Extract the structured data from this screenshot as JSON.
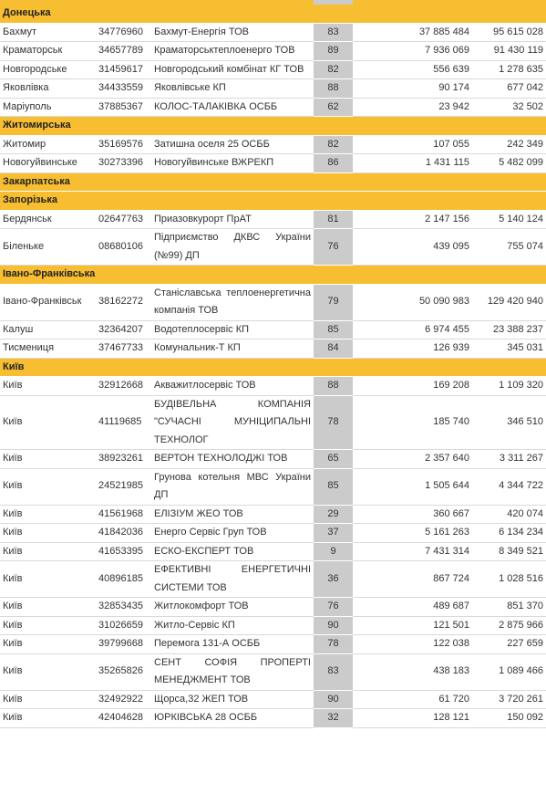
{
  "table": {
    "sections": [
      {
        "region": "Донецька",
        "rows": [
          {
            "city": "Бахмут",
            "code": "34776960",
            "name": "Бахмут-Енергія ТОВ",
            "score": "83",
            "v1": "37 885 484",
            "v2": "95 615 028"
          },
          {
            "city": "Краматорськ",
            "code": "34657789",
            "name": "Краматорськтеплоенерго ТОВ",
            "score": "89",
            "v1": "7 936 069",
            "v2": "91 430 119"
          },
          {
            "city": "Новгородське",
            "code": "31459617",
            "name": "Новгородський комбінат КГ ТОВ",
            "score": "82",
            "v1": "556 639",
            "v2": "1 278 635"
          },
          {
            "city": "Яковлівка",
            "code": "34433559",
            "name": "Яковлівське КП",
            "score": "88",
            "v1": "90 174",
            "v2": "677 042"
          },
          {
            "city": "Маріуполь",
            "code": "37885367",
            "name": "КОЛОС-ТАЛАКІВКА ОСББ",
            "score": "62",
            "v1": "23 942",
            "v2": "32 502"
          }
        ]
      },
      {
        "region": "Житомирська",
        "rows": [
          {
            "city": "Житомир",
            "code": "35169576",
            "name": "Затишна оселя 25 ОСББ",
            "score": "82",
            "v1": "107 055",
            "v2": "242 349"
          },
          {
            "city": "Новогуйвинське",
            "code": "30273396",
            "name": "Новогуйвинське ВЖРЕКП",
            "score": "86",
            "v1": "1 431 115",
            "v2": "5 482 099"
          }
        ]
      },
      {
        "region": "Закарпатська",
        "rows": []
      },
      {
        "region": "Запорізька",
        "rows": [
          {
            "city": "Бердянськ",
            "code": "02647763",
            "name": "Приазовкурорт ПрАТ",
            "score": "81",
            "v1": "2 147 156",
            "v2": "5 140 124"
          },
          {
            "city": "Біленьке",
            "code": "08680106",
            "name": "Підприємство ДКВС України (№99) ДП",
            "score": "76",
            "v1": "439 095",
            "v2": "755 074"
          }
        ]
      },
      {
        "region": "Івано-Франківська",
        "rows": [
          {
            "city": "Івано-Франківськ",
            "code": "38162272",
            "name": "Станіславська теплоенергетична компанія ТОВ",
            "score": "79",
            "v1": "50 090 983",
            "v2": "129 420 940"
          },
          {
            "city": "Калуш",
            "code": "32364207",
            "name": "Водотеплосервіс КП",
            "score": "85",
            "v1": "6 974 455",
            "v2": "23 388 237"
          },
          {
            "city": "Тисмениця",
            "code": "37467733",
            "name": "Комунальник-Т КП",
            "score": "84",
            "v1": "126 939",
            "v2": "345 031"
          }
        ]
      },
      {
        "region": "Київ",
        "rows": [
          {
            "city": "Київ",
            "code": "32912668",
            "name": "Акважитлосервіс ТОВ",
            "score": "88",
            "v1": "169 208",
            "v2": "1 109 320"
          },
          {
            "city": "Київ",
            "code": "41119685",
            "name": "БУДІВЕЛЬНА КОМПАНІЯ \"СУЧАСНІ МУНІЦИПАЛЬНІ ТЕХНОЛОГ",
            "score": "78",
            "v1": "185 740",
            "v2": "346 510"
          },
          {
            "city": "Київ",
            "code": "38923261",
            "name": "ВЕРТОН ТЕХНОЛОДЖІ ТОВ",
            "score": "65",
            "v1": "2 357 640",
            "v2": "3 311 267"
          },
          {
            "city": "Київ",
            "code": "24521985",
            "name": "Грунова котельня МВС України ДП",
            "score": "85",
            "v1": "1 505 644",
            "v2": "4 344 722"
          },
          {
            "city": "Київ",
            "code": "41561968",
            "name": "ЕЛІЗІУМ ЖЕО ТОВ",
            "score": "29",
            "v1": "360 667",
            "v2": "420 074"
          },
          {
            "city": "Київ",
            "code": "41842036",
            "name": "Енерго Сервіс Груп ТОВ",
            "score": "37",
            "v1": "5 161 263",
            "v2": "6 134 234"
          },
          {
            "city": "Київ",
            "code": "41653395",
            "name": "ЕСКО-ЕКСПЕРТ ТОВ",
            "score": "9",
            "v1": "7 431 314",
            "v2": "8 349 521"
          },
          {
            "city": "Київ",
            "code": "40896185",
            "name": "ЕФЕКТИВНІ ЕНЕРГЕТИЧНІ СИСТЕМИ ТОВ",
            "score": "36",
            "v1": "867 724",
            "v2": "1 028 516"
          },
          {
            "city": "Київ",
            "code": "32853435",
            "name": "Житлокомфорт ТОВ",
            "score": "76",
            "v1": "489 687",
            "v2": "851 370"
          },
          {
            "city": "Київ",
            "code": "31026659",
            "name": "Житло-Сервіс КП",
            "score": "90",
            "v1": "121 501",
            "v2": "2 875 966"
          },
          {
            "city": "Київ",
            "code": "39799668",
            "name": "Перемога 131-А ОСББ",
            "score": "78",
            "v1": "122 038",
            "v2": "227 659"
          },
          {
            "city": "Київ",
            "code": "35265826",
            "name": "СЕНТ СОФІЯ ПРОПЕРТІ МЕНЕДЖМЕНТ ТОВ",
            "score": "83",
            "v1": "438 183",
            "v2": "1 089 466"
          },
          {
            "city": "Київ",
            "code": "32492922",
            "name": "Щорса,32 ЖЕП ТОВ",
            "score": "90",
            "v1": "61 720",
            "v2": "3 720 261"
          },
          {
            "city": "Київ",
            "code": "42404628",
            "name": "ЮРКІВСЬКА 28 ОСББ",
            "score": "32",
            "v1": "128 121",
            "v2": "150 092"
          }
        ]
      }
    ]
  }
}
